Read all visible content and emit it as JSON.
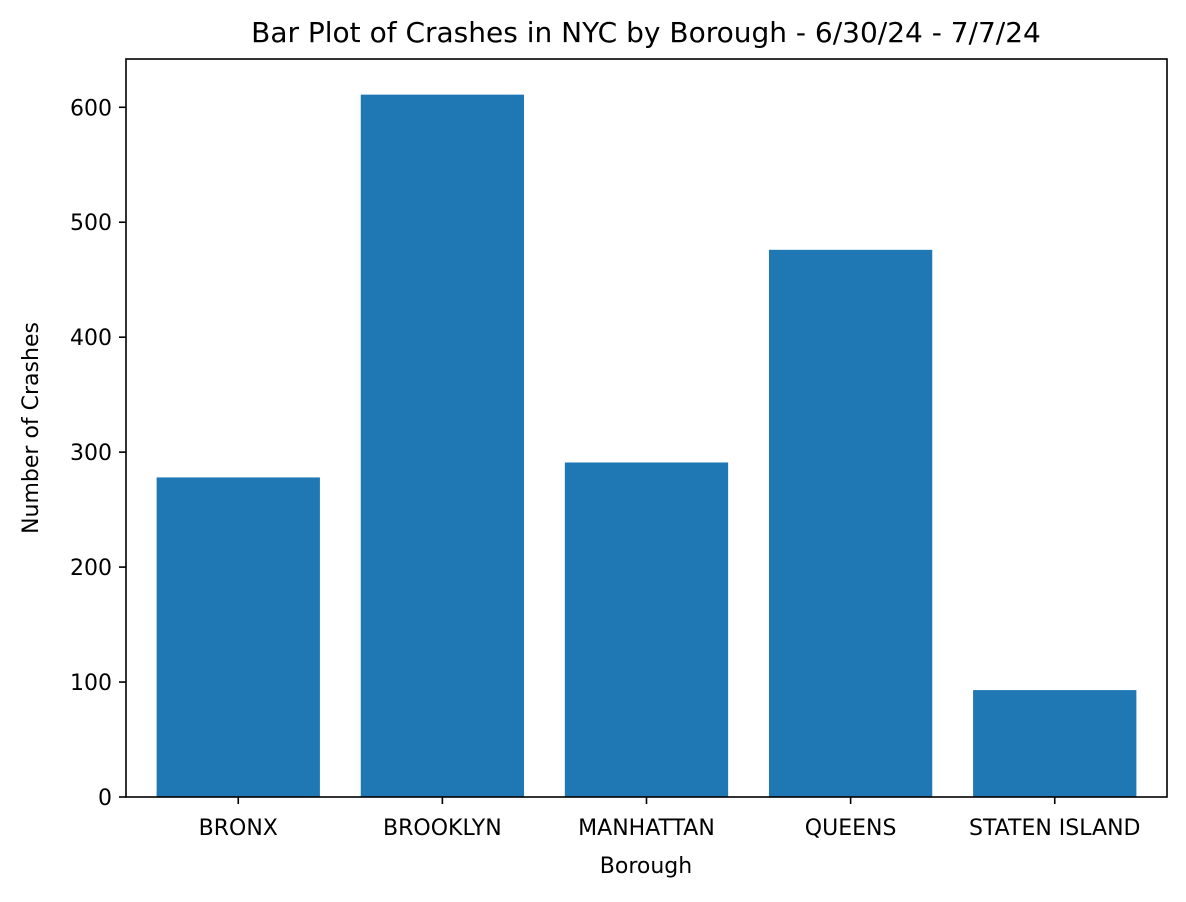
{
  "colors": {
    "bar": "#1f77b4",
    "axis": "#000000",
    "background": "#ffffff"
  },
  "chart_data": {
    "type": "bar",
    "title": "Bar Plot of Crashes in NYC by Borough - 6/30/24 - 7/7/24",
    "xlabel": "Borough",
    "ylabel": "Number of Crashes",
    "categories": [
      "BRONX",
      "BROOKLYN",
      "MANHATTAN",
      "QUEENS",
      "STATEN ISLAND"
    ],
    "values": [
      278,
      611,
      291,
      476,
      93
    ],
    "ylim": [
      0,
      642
    ],
    "yticks": [
      0,
      100,
      200,
      300,
      400,
      500,
      600
    ],
    "ytick_labels": [
      "0",
      "100",
      "200",
      "300",
      "400",
      "500",
      "600"
    ],
    "grid": false,
    "legend": "none"
  }
}
